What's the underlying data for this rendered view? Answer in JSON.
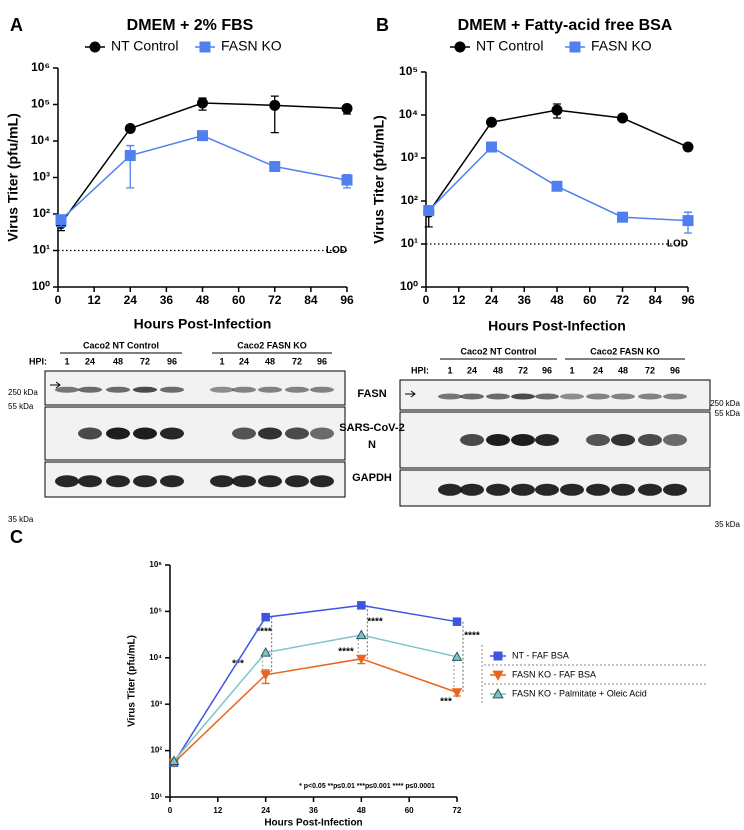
{
  "chart_data": [
    {
      "type": "line",
      "title": "DMEM + 2% FBS",
      "xlabel": "Hours Post-Infection",
      "ylabel": "Virus Titer (pfu/mL)",
      "x": [
        1,
        24,
        48,
        72,
        96
      ],
      "xlim": [
        0,
        96
      ],
      "xticks": [
        0,
        12,
        24,
        36,
        48,
        60,
        72,
        84,
        96
      ],
      "log_y": true,
      "ylim": [
        1,
        1000000
      ],
      "yticks": [
        {
          "value": 1,
          "label": "10⁰"
        },
        {
          "value": 10,
          "label": "10¹"
        },
        {
          "value": 100,
          "label": "10²"
        },
        {
          "value": 1000,
          "label": "10³"
        },
        {
          "value": 10000,
          "label": "10⁴"
        },
        {
          "value": 100000,
          "label": "10⁵"
        },
        {
          "value": 1000000,
          "label": "10⁶"
        }
      ],
      "lod": {
        "value": 10,
        "label": "LOD"
      },
      "legend": "top",
      "series": [
        {
          "name": "NT Control",
          "color": "#000000",
          "marker": "circle",
          "values": [
            55,
            22000,
            110000,
            95000,
            78000
          ],
          "err_low": [
            35,
            null,
            70000,
            17000,
            55000
          ],
          "err_high": [
            80,
            null,
            150000,
            170000,
            95000
          ]
        },
        {
          "name": "FASN KO",
          "color": "#5080f0",
          "marker": "square",
          "values": [
            70,
            4000,
            14000,
            2000,
            850
          ],
          "err_low": [
            45,
            520,
            null,
            null,
            520
          ],
          "err_high": [
            90,
            7500,
            null,
            null,
            1200
          ]
        }
      ]
    },
    {
      "type": "line",
      "title": "DMEM + Fatty-acid free BSA",
      "xlabel": "Hours Post-Infection",
      "ylabel": "Virus Titer (pfu/mL)",
      "x": [
        1,
        24,
        48,
        72,
        96
      ],
      "xlim": [
        0,
        96
      ],
      "xticks": [
        0,
        12,
        24,
        36,
        48,
        60,
        72,
        84,
        96
      ],
      "log_y": true,
      "ylim": [
        1,
        100000
      ],
      "yticks": [
        {
          "value": 1,
          "label": "10⁰"
        },
        {
          "value": 10,
          "label": "10¹"
        },
        {
          "value": 100,
          "label": "10²"
        },
        {
          "value": 1000,
          "label": "10³"
        },
        {
          "value": 10000,
          "label": "10⁴"
        },
        {
          "value": 100000,
          "label": "10⁵"
        }
      ],
      "lod": {
        "value": 10,
        "label": "LOD"
      },
      "legend": "top",
      "series": [
        {
          "name": "NT Control",
          "color": "#000000",
          "marker": "circle",
          "values": [
            55,
            6800,
            13000,
            8500,
            1800
          ],
          "err_low": [
            25,
            null,
            8500,
            null,
            null
          ],
          "err_high": [
            70,
            null,
            18000,
            null,
            null
          ]
        },
        {
          "name": "FASN KO",
          "color": "#5080f0",
          "marker": "square",
          "values": [
            60,
            1800,
            220,
            42,
            35
          ],
          "err_low": [
            null,
            null,
            null,
            null,
            18
          ],
          "err_high": [
            null,
            null,
            null,
            null,
            55
          ]
        }
      ]
    },
    {
      "type": "line",
      "xlabel": "Hours Post-Infection",
      "ylabel": "Virus Titer (pfu/mL)",
      "x": [
        1,
        24,
        48,
        72
      ],
      "xlim": [
        0,
        72
      ],
      "xticks": [
        0,
        12,
        24,
        36,
        48,
        60,
        72
      ],
      "log_y": true,
      "ylim": [
        10,
        1000000
      ],
      "yticks": [
        {
          "value": 10,
          "label": "10¹"
        },
        {
          "value": 100,
          "label": "10²"
        },
        {
          "value": 1000,
          "label": "10³"
        },
        {
          "value": 10000,
          "label": "10⁴"
        },
        {
          "value": 100000,
          "label": "10⁵"
        },
        {
          "value": 1000000,
          "label": "10⁶"
        }
      ],
      "legend": "right",
      "series": [
        {
          "name": "NT - FAF BSA",
          "color": "#3d55e0",
          "marker": "square",
          "values": [
            55,
            75000,
            135000,
            60000
          ]
        },
        {
          "name": "FASN KO - FAF BSA",
          "color": "#e8661c",
          "marker": "triangle-down",
          "values": [
            55,
            4300,
            9500,
            1800
          ],
          "err_low": [
            null,
            2800,
            7500,
            1500
          ],
          "err_high": [
            null,
            5500,
            11000,
            2100
          ]
        },
        {
          "name": "FASN KO - Palmitate + Oleic Acid",
          "color": "#7fc3c9",
          "marker": "triangle-up",
          "values": [
            60,
            13000,
            31000,
            10500
          ]
        }
      ],
      "annotations": [
        "****",
        "***",
        "****",
        "****",
        "****",
        "***"
      ],
      "footnote": "* p<0.05 **p≤0.01 ***p≤0.001 **** p≤0.0001"
    }
  ],
  "panel_labels": [
    "A",
    "B",
    "C"
  ],
  "blots": [
    {
      "hpi_label": "HPI:",
      "groups": [
        {
          "name": "Caco2 NT Control",
          "lanes": [
            "1",
            "24",
            "48",
            "72",
            "96"
          ]
        },
        {
          "name": "Caco2 FASN KO",
          "lanes": [
            "1",
            "24",
            "48",
            "72",
            "96"
          ]
        }
      ],
      "markers": [
        "250 kDa",
        "55 kDa",
        "35 kDa"
      ]
    },
    {
      "hpi_label": "HPI:",
      "groups": [
        {
          "name": "Caco2 NT Control",
          "lanes": [
            "1",
            "24",
            "48",
            "72",
            "96"
          ]
        },
        {
          "name": "Caco2 FASN KO",
          "lanes": [
            "1",
            "24",
            "48",
            "72",
            "96"
          ]
        }
      ],
      "markers": [
        "250 kDa",
        "55 kDa",
        "35 kDa"
      ]
    }
  ],
  "blot_rows": [
    "FASN",
    "SARS-CoV-2",
    "N",
    "GAPDH"
  ]
}
